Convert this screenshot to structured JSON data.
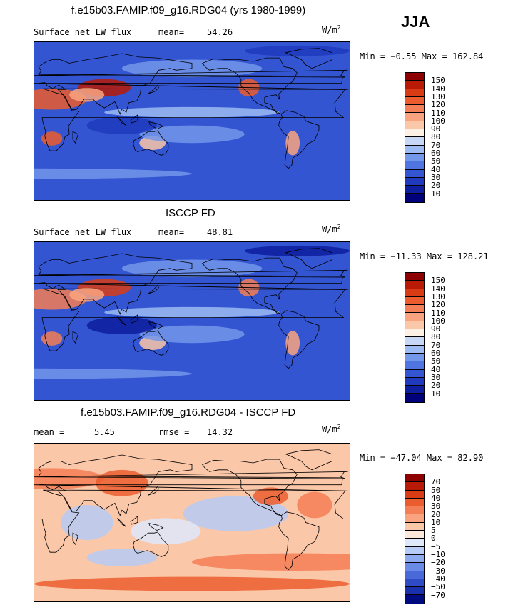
{
  "season": "JJA",
  "chart_data": [
    {
      "type": "heatmap",
      "title": "f.e15b03.FAMIP.f09_g16.RDG04 (yrs 1980-1999)",
      "variable": "Surface net LW flux",
      "mean_label": "mean=",
      "mean_value": "54.26",
      "units": "W/m",
      "units_sup": "2",
      "minmax": "Min =   −0.55 Max = 162.84",
      "min": -0.55,
      "max": 162.84,
      "colorbar": {
        "levels": [
          "150",
          "140",
          "130",
          "120",
          "110",
          "100",
          "90",
          "80",
          "70",
          "60",
          "50",
          "40",
          "30",
          "20",
          "10"
        ],
        "colors": [
          "#8c0000",
          "#b81a06",
          "#d93c14",
          "#eb5d2f",
          "#f47e56",
          "#f9a47f",
          "#fbc7a9",
          "#fdf0e4",
          "#c7d8f7",
          "#9dbcf3",
          "#7398ea",
          "#4f75e0",
          "#3355d1",
          "#1f3abd",
          "#0d1f9e",
          "#00007a"
        ]
      }
    },
    {
      "type": "heatmap",
      "title": "ISCCP FD",
      "variable": "Surface net LW flux",
      "mean_label": "mean=",
      "mean_value": "48.81",
      "units": "W/m",
      "units_sup": "2",
      "minmax": "Min = −11.33 Max = 128.21",
      "min": -11.33,
      "max": 128.21,
      "colorbar": {
        "levels": [
          "150",
          "140",
          "130",
          "120",
          "110",
          "100",
          "90",
          "80",
          "70",
          "60",
          "50",
          "40",
          "30",
          "20",
          "10"
        ],
        "colors": [
          "#8c0000",
          "#b81a06",
          "#d93c14",
          "#eb5d2f",
          "#f47e56",
          "#f9a47f",
          "#fbc7a9",
          "#fdf0e4",
          "#c7d8f7",
          "#9dbcf3",
          "#7398ea",
          "#4f75e0",
          "#3355d1",
          "#1f3abd",
          "#0d1f9e",
          "#00007a"
        ]
      }
    },
    {
      "type": "heatmap",
      "title": "f.e15b03.FAMIP.f09_g16.RDG04 - ISCCP FD",
      "mean_label": "mean =",
      "mean_value": "5.45",
      "rmse_label": "rmse =",
      "rmse_value": "14.32",
      "units": "W/m",
      "units_sup": "2",
      "minmax": "Min = −47.04 Max =  82.90",
      "min": -47.04,
      "max": 82.9,
      "colorbar": {
        "levels": [
          "70",
          "50",
          "40",
          "30",
          "20",
          "10",
          "5",
          "0",
          "−5",
          "−10",
          "−20",
          "−30",
          "−40",
          "−50",
          "−70"
        ],
        "colors": [
          "#8c0000",
          "#b81a06",
          "#d93c14",
          "#eb5d2f",
          "#f47e56",
          "#f9a47f",
          "#fbc7a9",
          "#fde8dc",
          "#dde8fb",
          "#b6cbf5",
          "#8eaaee",
          "#6a8ae5",
          "#4a69d9",
          "#2f4cc6",
          "#1a30ad",
          "#000a80"
        ]
      }
    }
  ]
}
